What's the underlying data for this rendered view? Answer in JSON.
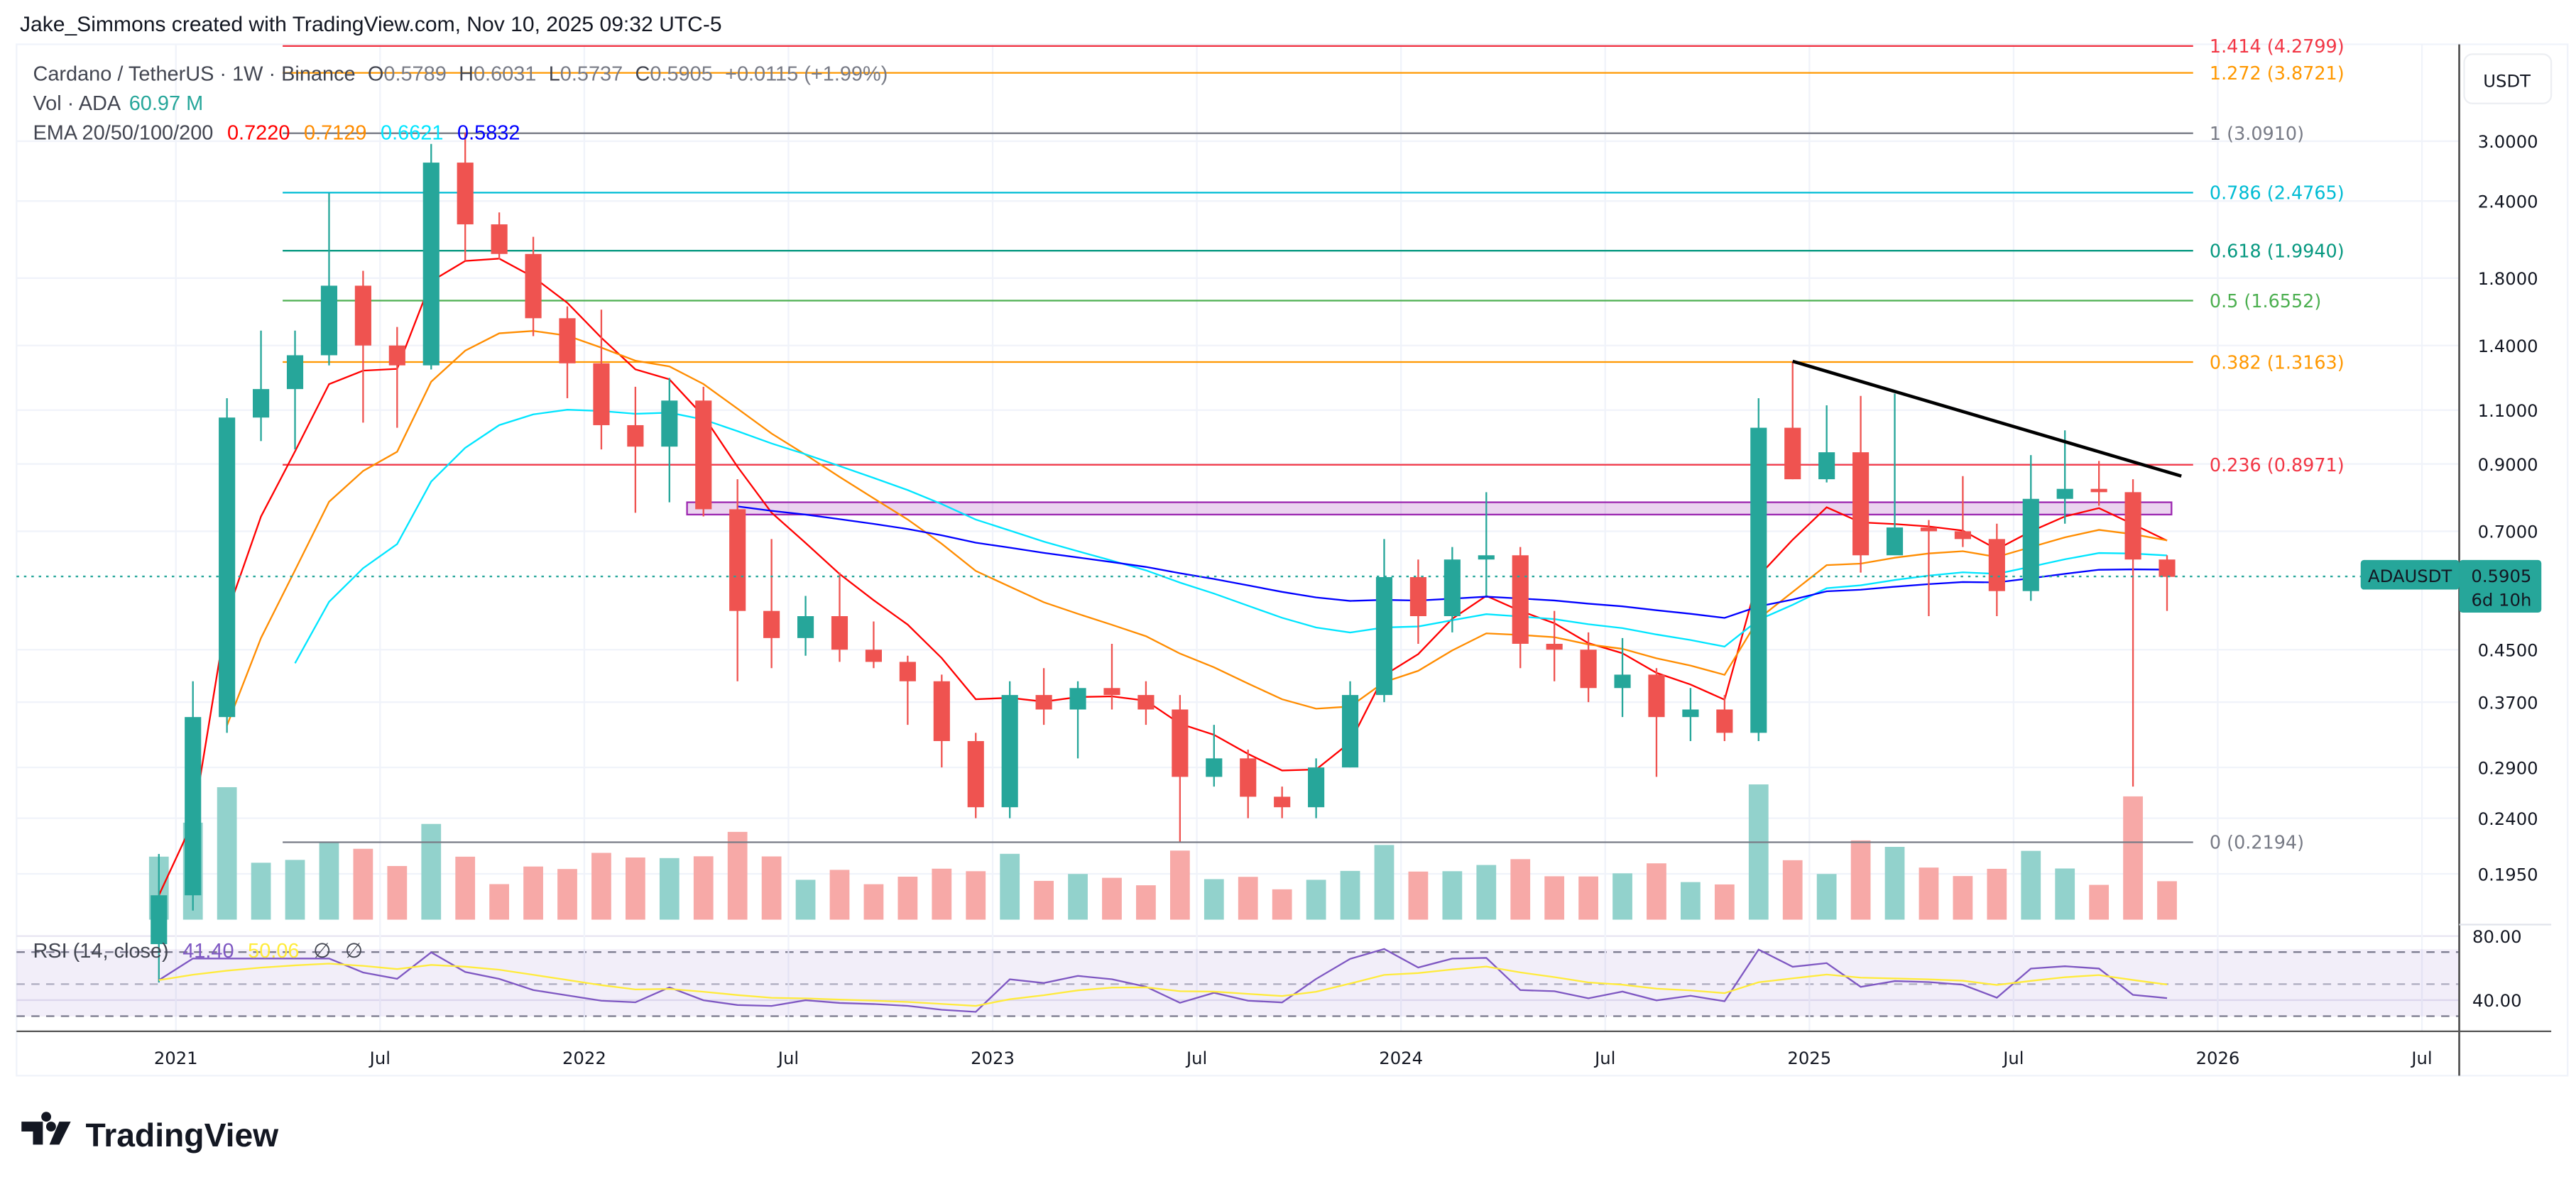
{
  "header": {
    "attribution": "Jake_Simmons created with TradingView.com, Nov 10, 2025 09:32 UTC-5"
  },
  "legend": {
    "symbol": "Cardano / TetherUS · 1W · Binance",
    "o_label": "O",
    "o": "0.5789",
    "h_label": "H",
    "h": "0.6031",
    "l_label": "L",
    "l": "0.5737",
    "c_label": "C",
    "c": "0.5905",
    "change": "+0.0115 (+1.99%)",
    "vol_label": "Vol · ADA",
    "vol": "60.97 M",
    "ema_label": "EMA 20/50/100/200",
    "ema": [
      "0.7220",
      "0.7129",
      "0.6621",
      "0.5832"
    ],
    "ema_colors": [
      "#ff0000",
      "#ff8c00",
      "#00ffff",
      "#0000ff"
    ],
    "rsi_label": "RSI (14, close)",
    "rsi": "41.40",
    "rsi_ma": "50.06",
    "rsi_na1": "∅",
    "rsi_na2": "∅",
    "rsi_color": "#7e57c2",
    "rsi_ma_color": "#ffeb3b"
  },
  "price_axis": {
    "currency": "USDT",
    "scale": "log",
    "ticks": [
      "3.0000",
      "2.4000",
      "1.8000",
      "1.4000",
      "1.1000",
      "0.9000",
      "0.7000",
      "0.4500",
      "0.3700",
      "0.2900",
      "0.2400",
      "0.1950"
    ],
    "last_symbol": "ADAUSDT",
    "last_price": "0.5905",
    "countdown": "6d 10h",
    "last_color": "#26a69a"
  },
  "rsi_axis": {
    "ticks": [
      "80.00",
      "40.00"
    ],
    "levels": [
      70,
      50,
      30
    ]
  },
  "time_axis": {
    "ticks": [
      "2021",
      "Jul",
      "2022",
      "Jul",
      "2023",
      "Jul",
      "2024",
      "Jul",
      "2025",
      "Jul",
      "2026",
      "Jul"
    ]
  },
  "fib_levels": [
    {
      "label": "1.414 (4.2799)",
      "price": 4.2799,
      "color": "#f23645"
    },
    {
      "label": "1.272 (3.8721)",
      "price": 3.8721,
      "color": "#ff9800"
    },
    {
      "label": "1 (3.0910)",
      "price": 3.091,
      "color": "#787b86"
    },
    {
      "label": "0.786 (2.4765)",
      "price": 2.4765,
      "color": "#00bcd4"
    },
    {
      "label": "0.618 (1.9940)",
      "price": 1.994,
      "color": "#089981"
    },
    {
      "label": "0.5 (1.6552)",
      "price": 1.6552,
      "color": "#4caf50"
    },
    {
      "label": "0.382 (1.3163)",
      "price": 1.3163,
      "color": "#ff9800"
    },
    {
      "label": "0.236 (0.8971)",
      "price": 0.8971,
      "color": "#f23645"
    },
    {
      "label": "0 (0.2194)",
      "price": 0.2194,
      "color": "#787b86"
    }
  ],
  "drawings": {
    "trendline": {
      "from": [
        "2024-12",
        1.32
      ],
      "to": [
        "2025-12",
        0.86
      ],
      "color": "#000000"
    },
    "zone": {
      "from": "2022-04",
      "to": "2025-12",
      "top": 0.78,
      "bottom": 0.745,
      "color": "#9c27b0"
    }
  },
  "colors": {
    "up": "#26a69a",
    "down": "#ef5350",
    "vol_up": "#92d2cc",
    "vol_down": "#f7a9a7"
  },
  "logo": {
    "text": "TradingView"
  },
  "chart_data": {
    "type": "candlestick",
    "title": "Cardano / TetherUS · 1W · Binance",
    "y_scale": "log",
    "ylim": [
      0.17,
      4.3
    ],
    "xlim": [
      "2020-09",
      "2026-08"
    ],
    "grid": true,
    "candle_fields": [
      "month",
      "open",
      "high",
      "low",
      "close"
    ],
    "candles": [
      [
        "2020-12",
        0.15,
        0.21,
        0.13,
        0.18
      ],
      [
        "2021-01",
        0.18,
        0.4,
        0.17,
        0.35
      ],
      [
        "2021-02",
        0.35,
        1.15,
        0.33,
        1.07
      ],
      [
        "2021-03",
        1.07,
        1.48,
        0.98,
        1.19
      ],
      [
        "2021-04",
        1.19,
        1.48,
        0.95,
        1.35
      ],
      [
        "2021-05",
        1.35,
        2.47,
        1.3,
        1.75
      ],
      [
        "2021-06",
        1.75,
        1.85,
        1.05,
        1.4
      ],
      [
        "2021-07",
        1.4,
        1.5,
        1.03,
        1.3
      ],
      [
        "2021-08",
        1.3,
        2.97,
        1.28,
        2.77
      ],
      [
        "2021-09",
        2.77,
        3.1,
        1.92,
        2.2
      ],
      [
        "2021-10",
        2.2,
        2.3,
        1.93,
        1.97
      ],
      [
        "2021-11",
        1.97,
        2.1,
        1.45,
        1.55
      ],
      [
        "2021-12",
        1.55,
        1.62,
        1.15,
        1.31
      ],
      [
        "2022-01",
        1.31,
        1.6,
        0.95,
        1.04
      ],
      [
        "2022-02",
        1.04,
        1.2,
        0.75,
        0.96
      ],
      [
        "2022-03",
        0.96,
        1.24,
        0.78,
        1.14
      ],
      [
        "2022-04",
        1.14,
        1.2,
        0.74,
        0.76
      ],
      [
        "2022-05",
        0.76,
        0.85,
        0.4,
        0.52
      ],
      [
        "2022-06",
        0.52,
        0.68,
        0.42,
        0.47
      ],
      [
        "2022-07",
        0.47,
        0.55,
        0.44,
        0.51
      ],
      [
        "2022-08",
        0.51,
        0.6,
        0.43,
        0.45
      ],
      [
        "2022-09",
        0.45,
        0.5,
        0.42,
        0.43
      ],
      [
        "2022-10",
        0.43,
        0.44,
        0.34,
        0.4
      ],
      [
        "2022-11",
        0.4,
        0.41,
        0.29,
        0.32
      ],
      [
        "2022-12",
        0.32,
        0.33,
        0.24,
        0.25
      ],
      [
        "2023-01",
        0.25,
        0.4,
        0.24,
        0.38
      ],
      [
        "2023-02",
        0.38,
        0.42,
        0.34,
        0.36
      ],
      [
        "2023-03",
        0.36,
        0.4,
        0.3,
        0.39
      ],
      [
        "2023-04",
        0.39,
        0.46,
        0.36,
        0.38
      ],
      [
        "2023-05",
        0.38,
        0.4,
        0.34,
        0.36
      ],
      [
        "2023-06",
        0.36,
        0.38,
        0.22,
        0.28
      ],
      [
        "2023-07",
        0.28,
        0.34,
        0.27,
        0.3
      ],
      [
        "2023-08",
        0.3,
        0.31,
        0.24,
        0.26
      ],
      [
        "2023-09",
        0.26,
        0.27,
        0.24,
        0.25
      ],
      [
        "2023-10",
        0.25,
        0.3,
        0.24,
        0.29
      ],
      [
        "2023-11",
        0.29,
        0.4,
        0.29,
        0.38
      ],
      [
        "2023-12",
        0.38,
        0.68,
        0.37,
        0.59
      ],
      [
        "2024-01",
        0.59,
        0.63,
        0.46,
        0.51
      ],
      [
        "2024-02",
        0.51,
        0.66,
        0.48,
        0.63
      ],
      [
        "2024-03",
        0.63,
        0.81,
        0.55,
        0.64
      ],
      [
        "2024-04",
        0.64,
        0.66,
        0.42,
        0.46
      ],
      [
        "2024-05",
        0.46,
        0.52,
        0.4,
        0.45
      ],
      [
        "2024-06",
        0.45,
        0.48,
        0.37,
        0.39
      ],
      [
        "2024-07",
        0.39,
        0.47,
        0.35,
        0.41
      ],
      [
        "2024-08",
        0.41,
        0.42,
        0.28,
        0.35
      ],
      [
        "2024-09",
        0.35,
        0.39,
        0.32,
        0.36
      ],
      [
        "2024-10",
        0.36,
        0.38,
        0.32,
        0.33
      ],
      [
        "2024-11",
        0.33,
        1.15,
        0.32,
        1.03
      ],
      [
        "2024-12",
        1.03,
        1.32,
        0.85,
        0.85
      ],
      [
        "2025-01",
        0.85,
        1.12,
        0.84,
        0.94
      ],
      [
        "2025-02",
        0.94,
        1.16,
        0.6,
        0.64
      ],
      [
        "2025-03",
        0.64,
        1.17,
        0.65,
        0.71
      ],
      [
        "2025-04",
        0.71,
        0.73,
        0.51,
        0.7
      ],
      [
        "2025-05",
        0.7,
        0.86,
        0.66,
        0.68
      ],
      [
        "2025-06",
        0.68,
        0.72,
        0.51,
        0.56
      ],
      [
        "2025-07",
        0.56,
        0.93,
        0.54,
        0.79
      ],
      [
        "2025-08",
        0.79,
        1.02,
        0.72,
        0.82
      ],
      [
        "2025-09",
        0.82,
        0.91,
        0.77,
        0.81
      ],
      [
        "2025-10",
        0.81,
        0.85,
        0.27,
        0.63
      ],
      [
        "2025-11",
        0.63,
        0.64,
        0.52,
        0.5905
      ]
    ]
  }
}
